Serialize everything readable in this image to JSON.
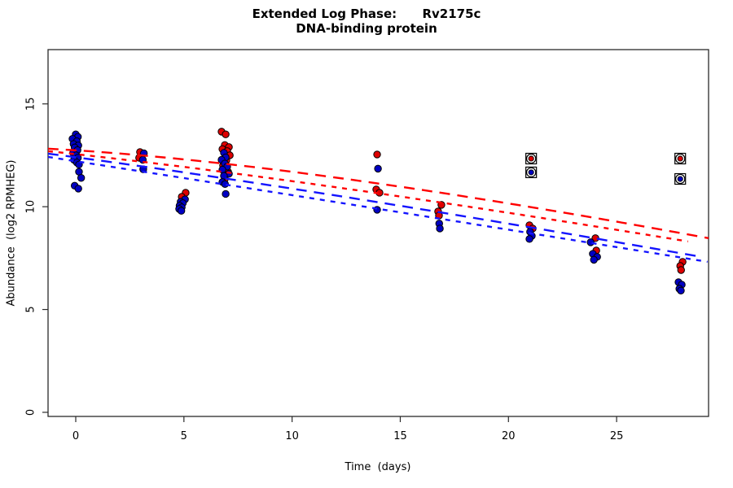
{
  "title": {
    "line1": "Extended Log Phase:      Rv2175c",
    "line2": "DNA-binding protein"
  },
  "axes": {
    "xlabel": "Time  (days)",
    "ylabel": "Abundance  (log2 RPMHEG)"
  },
  "colors": {
    "red_point": "#DE0000",
    "blue_point": "#0000C3",
    "red_line": "#FF0000",
    "blue_line": "#1414FF",
    "marker_edge": "#000000",
    "axis": "#2a2a2a"
  },
  "chart_data": {
    "type": "scatter",
    "title": "Extended Log Phase: Rv2175c / DNA-binding protein",
    "xlabel": "Time (days)",
    "ylabel": "Abundance (log2 RPMHEG)",
    "x_ticks": [
      0,
      5,
      10,
      15,
      20,
      25
    ],
    "y_ticks": [
      0,
      5,
      10,
      15
    ],
    "xlim": [
      -1.28,
      29.25
    ],
    "ylim": [
      -0.2,
      17.64
    ],
    "grid": false,
    "legend": "none",
    "series": [
      {
        "name": "red-points",
        "color_key": "red_point",
        "marker": "circle",
        "points": [
          [
            -0.05,
            12.7
          ],
          [
            0.06,
            12.45
          ],
          [
            2.97,
            12.66
          ],
          [
            2.93,
            12.38
          ],
          [
            5.08,
            10.68
          ],
          [
            4.9,
            10.48
          ],
          [
            6.74,
            13.65
          ],
          [
            6.93,
            13.52
          ],
          [
            6.89,
            13.0
          ],
          [
            7.08,
            12.9
          ],
          [
            6.78,
            12.8
          ],
          [
            7.0,
            12.7
          ],
          [
            7.12,
            12.5
          ],
          [
            6.96,
            12.25
          ],
          [
            6.81,
            12.0
          ],
          [
            7.04,
            11.7
          ],
          [
            6.89,
            11.35
          ],
          [
            13.93,
            12.54
          ],
          [
            13.89,
            10.84
          ],
          [
            14.04,
            10.68
          ],
          [
            16.9,
            10.09
          ],
          [
            16.75,
            9.77
          ],
          [
            16.79,
            9.57
          ],
          [
            20.97,
            9.1
          ],
          [
            21.12,
            8.94
          ],
          [
            24.02,
            8.47
          ],
          [
            24.06,
            7.87
          ],
          [
            28.05,
            7.32
          ],
          [
            27.94,
            7.12
          ],
          [
            27.98,
            6.92
          ]
        ]
      },
      {
        "name": "blue-points",
        "color_key": "blue_point",
        "marker": "circle",
        "points": [
          [
            0.0,
            13.52
          ],
          [
            0.1,
            13.4
          ],
          [
            -0.15,
            13.3
          ],
          [
            0.05,
            13.18
          ],
          [
            -0.1,
            13.05
          ],
          [
            0.12,
            12.98
          ],
          [
            -0.05,
            12.88
          ],
          [
            0.08,
            12.75
          ],
          [
            -0.12,
            12.62
          ],
          [
            0.02,
            12.5
          ],
          [
            0.1,
            12.38
          ],
          [
            -0.08,
            12.28
          ],
          [
            0.05,
            12.15
          ],
          [
            0.15,
            12.05
          ],
          [
            0.15,
            11.7
          ],
          [
            0.25,
            11.4
          ],
          [
            -0.05,
            11.02
          ],
          [
            0.12,
            10.88
          ],
          [
            3.15,
            12.6
          ],
          [
            3.1,
            12.28
          ],
          [
            3.12,
            11.82
          ],
          [
            5.05,
            10.36
          ],
          [
            4.85,
            10.24
          ],
          [
            4.95,
            10.17
          ],
          [
            4.8,
            10.05
          ],
          [
            4.9,
            9.97
          ],
          [
            4.78,
            9.89
          ],
          [
            4.88,
            9.8
          ],
          [
            6.85,
            12.62
          ],
          [
            6.93,
            12.4
          ],
          [
            6.74,
            12.28
          ],
          [
            6.89,
            12.1
          ],
          [
            7.0,
            11.95
          ],
          [
            6.78,
            11.8
          ],
          [
            7.08,
            11.6
          ],
          [
            6.85,
            11.5
          ],
          [
            6.78,
            11.2
          ],
          [
            6.9,
            11.1
          ],
          [
            6.93,
            10.62
          ],
          [
            13.97,
            11.85
          ],
          [
            13.93,
            9.85
          ],
          [
            16.8,
            9.18
          ],
          [
            16.83,
            8.94
          ],
          [
            21.0,
            8.78
          ],
          [
            21.08,
            8.58
          ],
          [
            20.97,
            8.43
          ],
          [
            23.8,
            8.27
          ],
          [
            23.9,
            7.71
          ],
          [
            24.1,
            7.56
          ],
          [
            23.95,
            7.42
          ],
          [
            27.86,
            6.33
          ],
          [
            28.01,
            6.21
          ],
          [
            27.9,
            6.01
          ],
          [
            27.97,
            5.92
          ]
        ]
      },
      {
        "name": "flagged-red-points",
        "color_key": "red_point",
        "marker": "boxed-circle",
        "points": [
          [
            21.05,
            12.34
          ],
          [
            27.94,
            12.34
          ]
        ]
      },
      {
        "name": "flagged-blue-points",
        "color_key": "blue_point",
        "marker": "boxed-circle",
        "points": [
          [
            21.05,
            11.67
          ],
          [
            27.94,
            11.35
          ]
        ]
      }
    ],
    "trend_lines": [
      {
        "name": "red-fit-longdash",
        "color_key": "red_line",
        "dash": "long",
        "points": [
          [
            -1.28,
            12.82
          ],
          [
            11.93,
            11.43
          ],
          [
            29.25,
            8.47
          ]
        ]
      },
      {
        "name": "red-fit-shortdash",
        "color_key": "red_line",
        "dash": "short",
        "points": [
          [
            -1.28,
            12.7
          ],
          [
            11.93,
            10.96
          ],
          [
            28.3,
            8.31
          ]
        ]
      },
      {
        "name": "blue-fit-longdash",
        "color_key": "blue_line",
        "dash": "long",
        "points": [
          [
            -1.28,
            12.58
          ],
          [
            11.93,
            10.56
          ],
          [
            28.7,
            7.6
          ]
        ]
      },
      {
        "name": "blue-fit-shortdash",
        "color_key": "blue_line",
        "dash": "short",
        "points": [
          [
            -1.28,
            12.42
          ],
          [
            11.93,
            10.24
          ],
          [
            29.2,
            7.32
          ]
        ]
      }
    ]
  }
}
